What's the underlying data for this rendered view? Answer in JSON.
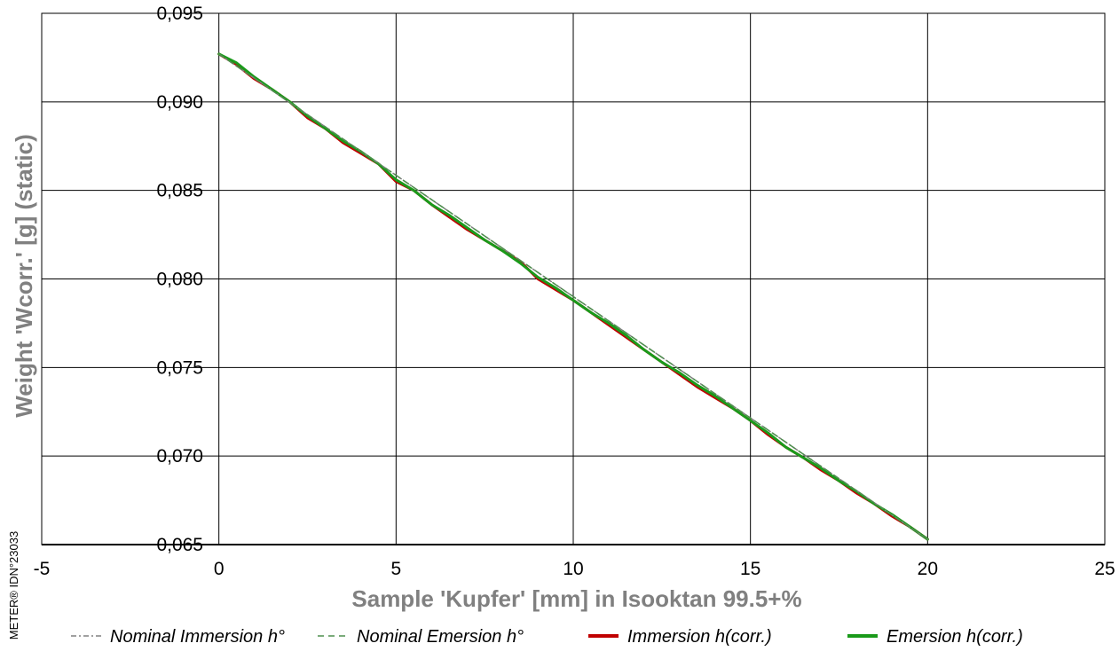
{
  "chart_data": {
    "type": "line",
    "xlabel": "Sample 'Kupfer' [mm] in Isooktan 99.5+%",
    "ylabel": "Weight 'Wcorr.' [g]  (static)",
    "xlim": [
      -5,
      25
    ],
    "ylim": [
      0.065,
      0.095
    ],
    "x_ticks": [
      -5,
      0,
      5,
      10,
      15,
      20,
      25
    ],
    "x_tick_labels": [
      "-5",
      "0",
      "5",
      "10",
      "15",
      "20",
      "25"
    ],
    "y_ticks": [
      0.065,
      0.07,
      0.075,
      0.08,
      0.085,
      0.09,
      0.095
    ],
    "y_tick_labels": [
      "0,065",
      "0,070",
      "0,075",
      "0,080",
      "0,085",
      "0,090",
      "0,095"
    ],
    "grid": true,
    "legend_position": "bottom",
    "series": [
      {
        "name": "Nominal Immersion h°",
        "color": "#808080",
        "dash": "dash-dot",
        "x": [
          0,
          20
        ],
        "y": [
          0.0927,
          0.0653
        ]
      },
      {
        "name": "Nominal Emersion h°",
        "color": "#4f8f4f",
        "dash": "dash",
        "x": [
          0,
          20
        ],
        "y": [
          0.0927,
          0.0653
        ]
      },
      {
        "name": "Immersion h(corr.)",
        "color": "#c00000",
        "dash": "solid",
        "x": [
          0,
          0.5,
          1,
          1.5,
          2,
          2.5,
          3,
          3.5,
          4,
          4.5,
          5,
          5.5,
          6,
          6.5,
          7,
          7.5,
          8,
          8.5,
          9,
          9.5,
          10,
          10.5,
          11,
          11.5,
          12,
          12.5,
          13,
          13.5,
          14,
          14.5,
          15,
          15.5,
          16,
          16.5,
          17,
          17.5,
          18,
          18.5,
          19,
          19.5,
          20
        ],
        "y": [
          0.0927,
          0.0921,
          0.0913,
          0.0907,
          0.09,
          0.0891,
          0.0885,
          0.0877,
          0.0871,
          0.0865,
          0.0855,
          0.085,
          0.0842,
          0.0835,
          0.0828,
          0.0822,
          0.0816,
          0.081,
          0.08,
          0.0794,
          0.0788,
          0.0781,
          0.0774,
          0.0767,
          0.076,
          0.0753,
          0.0746,
          0.0739,
          0.0733,
          0.0727,
          0.072,
          0.0712,
          0.0705,
          0.0699,
          0.0692,
          0.0686,
          0.0679,
          0.0673,
          0.0666,
          0.066,
          0.0653
        ]
      },
      {
        "name": "Emersion h(corr.)",
        "color": "#1a9a1a",
        "dash": "solid",
        "x": [
          0,
          0.5,
          1,
          1.5,
          2,
          2.5,
          3,
          3.5,
          4,
          4.5,
          5,
          5.5,
          6,
          6.5,
          7,
          7.5,
          8,
          8.5,
          9,
          9.5,
          10,
          10.5,
          11,
          11.5,
          12,
          12.5,
          13,
          13.5,
          14,
          14.5,
          15,
          15.5,
          16,
          16.5,
          17,
          17.5,
          18,
          18.5,
          19,
          19.5,
          20
        ],
        "y": [
          0.0927,
          0.0922,
          0.0914,
          0.0907,
          0.09,
          0.0892,
          0.0885,
          0.0878,
          0.0872,
          0.0865,
          0.0856,
          0.085,
          0.0842,
          0.0836,
          0.0829,
          0.0822,
          0.0816,
          0.0809,
          0.0801,
          0.0795,
          0.0788,
          0.0781,
          0.0775,
          0.0768,
          0.076,
          0.0753,
          0.0747,
          0.074,
          0.0734,
          0.0727,
          0.072,
          0.0713,
          0.0705,
          0.0699,
          0.0693,
          0.0686,
          0.068,
          0.0673,
          0.0667,
          0.066,
          0.0653
        ]
      }
    ]
  },
  "watermark": "METER® IDN°23033"
}
